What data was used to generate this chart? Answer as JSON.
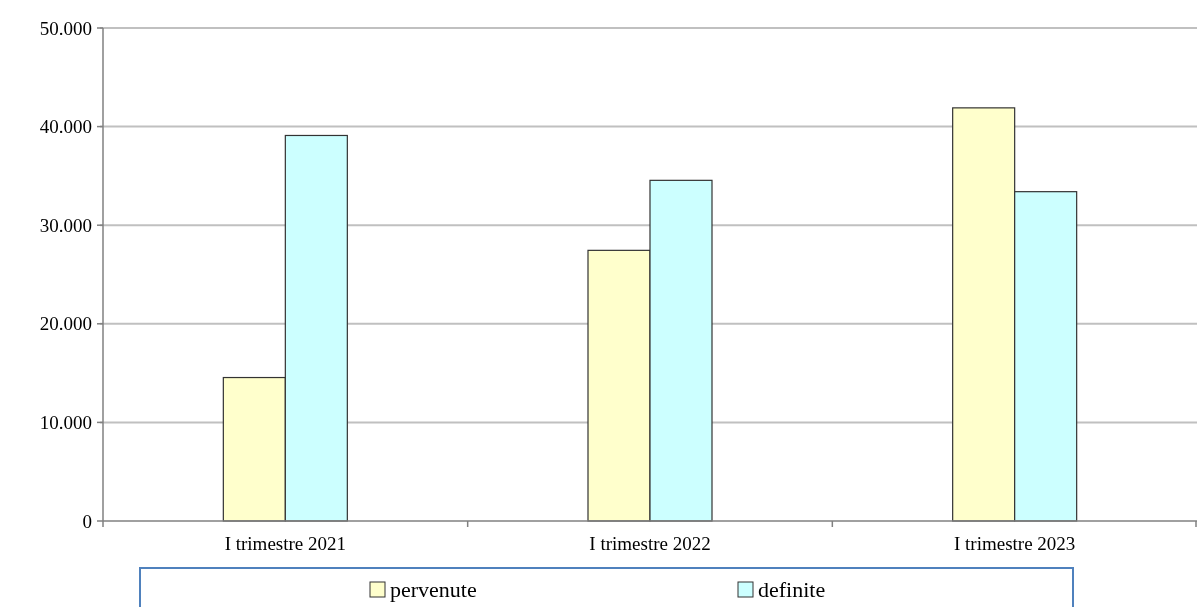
{
  "chart_data": {
    "type": "bar",
    "categories": [
      "I trimestre 2021",
      "I trimestre 2022",
      "I trimestre 2023"
    ],
    "series": [
      {
        "name": "pervenute",
        "color": "#ffffcc",
        "values": [
          14550,
          27450,
          41900
        ]
      },
      {
        "name": "definite",
        "color": "#ccffff",
        "values": [
          39100,
          34550,
          33400
        ]
      }
    ],
    "ylim": [
      0,
      50000
    ],
    "yticks": [
      0,
      {
        "value": 10000,
        "label": "10.000"
      },
      {
        "value": 20000,
        "label": "20.000"
      },
      {
        "value": 30000,
        "label": "30.000"
      },
      {
        "value": 40000,
        "label": "40.000"
      },
      {
        "value": 50000,
        "label": "50.000"
      }
    ],
    "grid": "y",
    "legend": "bottom"
  }
}
